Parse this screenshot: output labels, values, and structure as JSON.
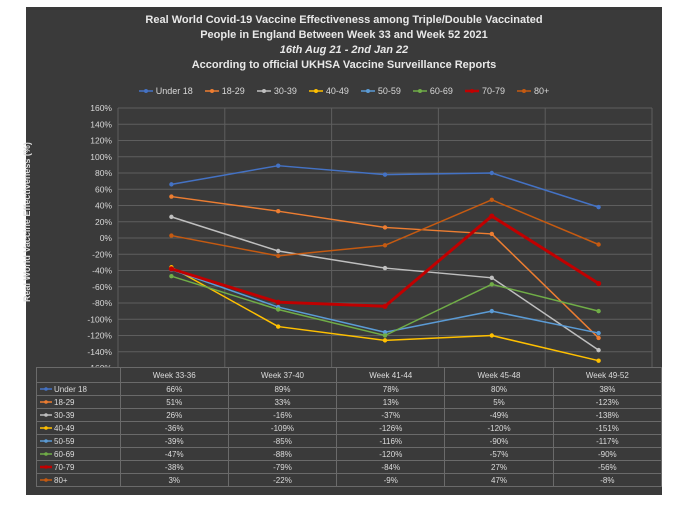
{
  "title": {
    "line1": "Real World Covid-19 Vaccine Effectiveness among Triple/Double Vaccinated",
    "line2": "People in England Between Week 33 and Week 52 2021",
    "line3": "16th Aug 21 - 2nd Jan 22",
    "line4": "According to official UKHSA Vaccine Surveillance Reports"
  },
  "chart_data": {
    "type": "line",
    "ylabel": "Real World Vaccine Effectiveness (%)",
    "ylim": [
      -160,
      160
    ],
    "ytick_step": 20,
    "grid": true,
    "legend_position": "top",
    "categories": [
      "Week 33-36",
      "Week 37-40",
      "Week 41-44",
      "Week 45-48",
      "Week 49-52"
    ],
    "series": [
      {
        "name": "Under 18",
        "color": "#4472c4",
        "width": 1.5,
        "values": [
          66,
          89,
          78,
          80,
          38
        ],
        "labels": [
          "66%",
          "89%",
          "78%",
          "80%",
          "38%"
        ]
      },
      {
        "name": "18-29",
        "color": "#ed7d31",
        "width": 1.5,
        "values": [
          51,
          33,
          13,
          5,
          -123
        ],
        "labels": [
          "51%",
          "33%",
          "13%",
          "5%",
          "-123%"
        ]
      },
      {
        "name": "30-39",
        "color": "#bfbfbf",
        "width": 1.5,
        "values": [
          26,
          -16,
          -37,
          -49,
          -138
        ],
        "labels": [
          "26%",
          "-16%",
          "-37%",
          "-49%",
          "-138%"
        ]
      },
      {
        "name": "40-49",
        "color": "#ffc000",
        "width": 1.5,
        "values": [
          -36,
          -109,
          -126,
          -120,
          -151
        ],
        "labels": [
          "-36%",
          "-109%",
          "-126%",
          "-120%",
          "-151%"
        ]
      },
      {
        "name": "50-59",
        "color": "#5b9bd5",
        "width": 1.5,
        "values": [
          -39,
          -85,
          -116,
          -90,
          -117
        ],
        "labels": [
          "-39%",
          "-85%",
          "-116%",
          "-90%",
          "-117%"
        ]
      },
      {
        "name": "60-69",
        "color": "#70ad47",
        "width": 1.5,
        "values": [
          -47,
          -88,
          -120,
          -57,
          -90
        ],
        "labels": [
          "-47%",
          "-88%",
          "-120%",
          "-57%",
          "-90%"
        ]
      },
      {
        "name": "70-79",
        "color": "#c00000",
        "width": 3,
        "values": [
          -38,
          -79,
          -84,
          27,
          -56
        ],
        "labels": [
          "-38%",
          "-79%",
          "-84%",
          "27%",
          "-56%"
        ]
      },
      {
        "name": "80+",
        "color": "#c55a11",
        "width": 1.5,
        "values": [
          3,
          -22,
          -9,
          47,
          -8
        ],
        "labels": [
          "3%",
          "-22%",
          "-9%",
          "47%",
          "-8%"
        ]
      }
    ]
  }
}
